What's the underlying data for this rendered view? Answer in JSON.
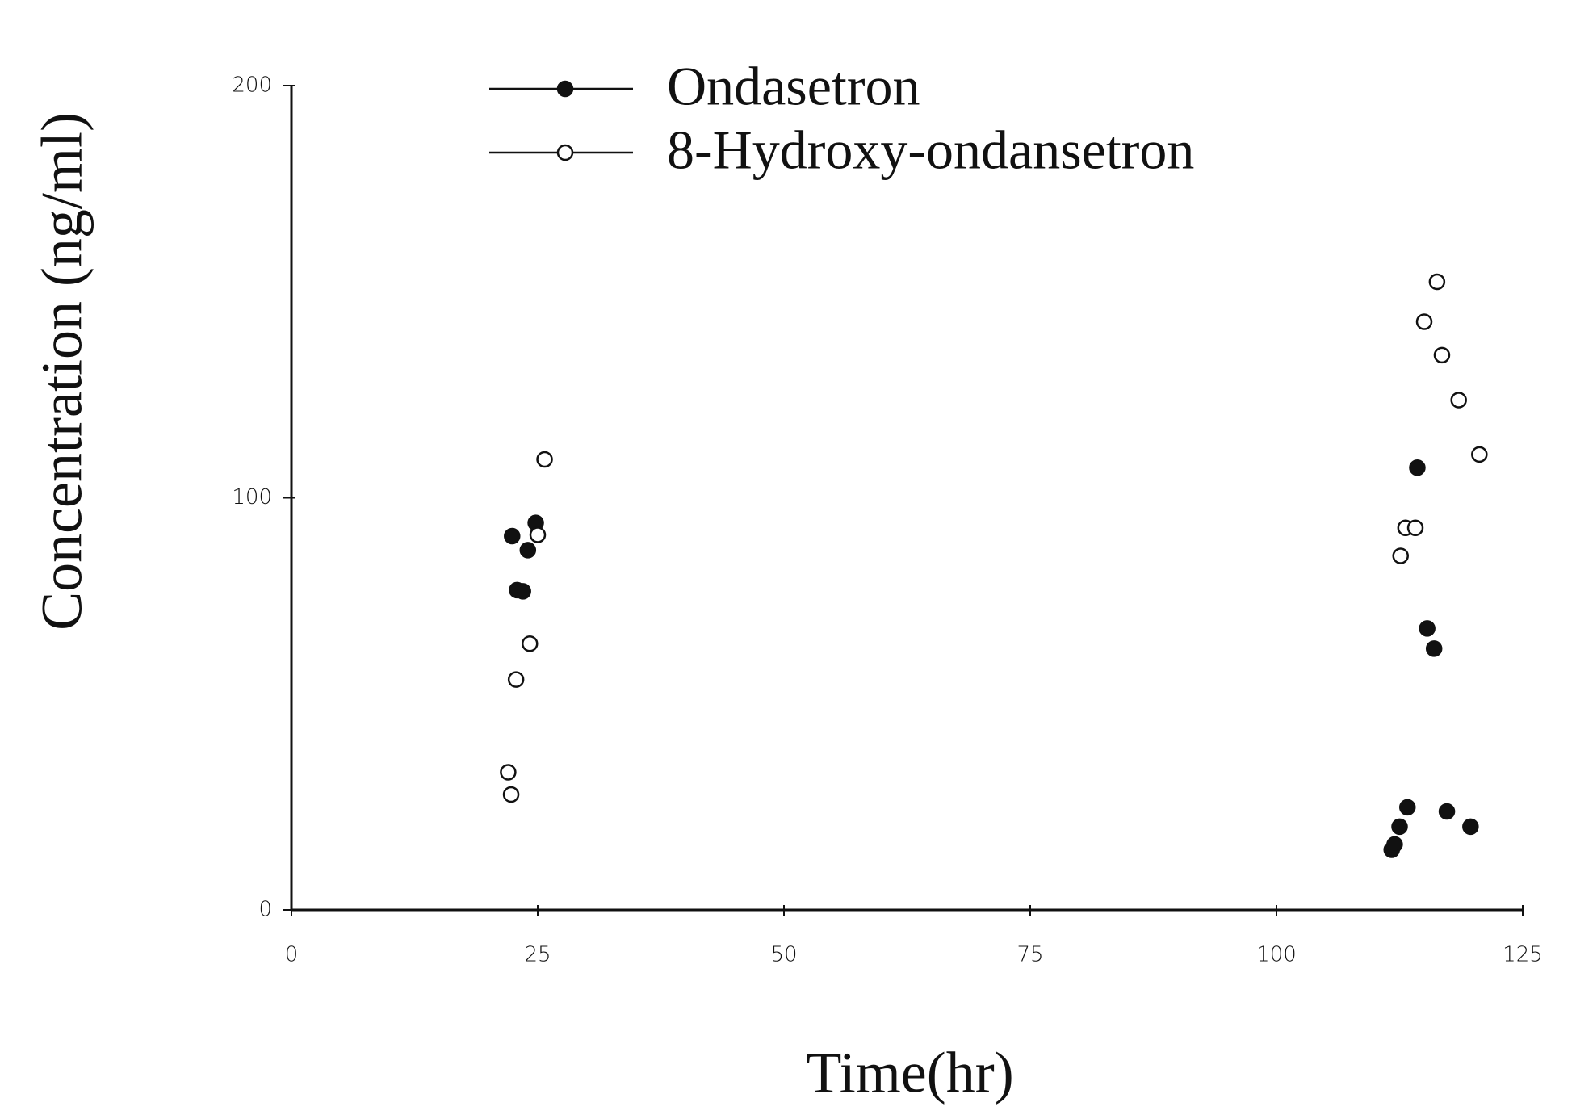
{
  "chart_data": {
    "type": "line",
    "xlabel": "Time(hr)",
    "ylabel": "Concentration (ng/ml)",
    "xlim": [
      0,
      125
    ],
    "ylim": [
      0,
      200
    ],
    "xticks": [
      0,
      25,
      50,
      75,
      100,
      125
    ],
    "yticks": [
      0,
      100,
      200
    ],
    "legend": "top",
    "series": [
      {
        "name": "Ondasetron",
        "color": "#111111",
        "marker": "filled",
        "x": [
          22.4,
          22.9,
          23.5,
          24.0,
          24.8,
          111.7,
          112.0,
          112.5,
          113.3,
          114.3,
          115.3,
          116.0,
          117.3,
          119.7
        ],
        "values": [
          90.7,
          77.6,
          77.3,
          87.3,
          93.9,
          14.6,
          15.9,
          20.2,
          24.9,
          107.3,
          68.3,
          63.4,
          23.9,
          20.2
        ]
      },
      {
        "name": "8-Hydroxy-ondansetron",
        "color": "#111111",
        "marker": "open",
        "x": [
          22.0,
          22.3,
          22.8,
          24.2,
          25.0,
          25.7,
          112.6,
          113.1,
          114.1,
          115.0,
          116.3,
          116.8,
          118.5,
          120.6
        ],
        "values": [
          33.4,
          28.0,
          55.9,
          64.6,
          91.0,
          109.3,
          85.9,
          92.7,
          92.7,
          142.7,
          152.4,
          134.6,
          123.7,
          110.5
        ]
      }
    ]
  }
}
